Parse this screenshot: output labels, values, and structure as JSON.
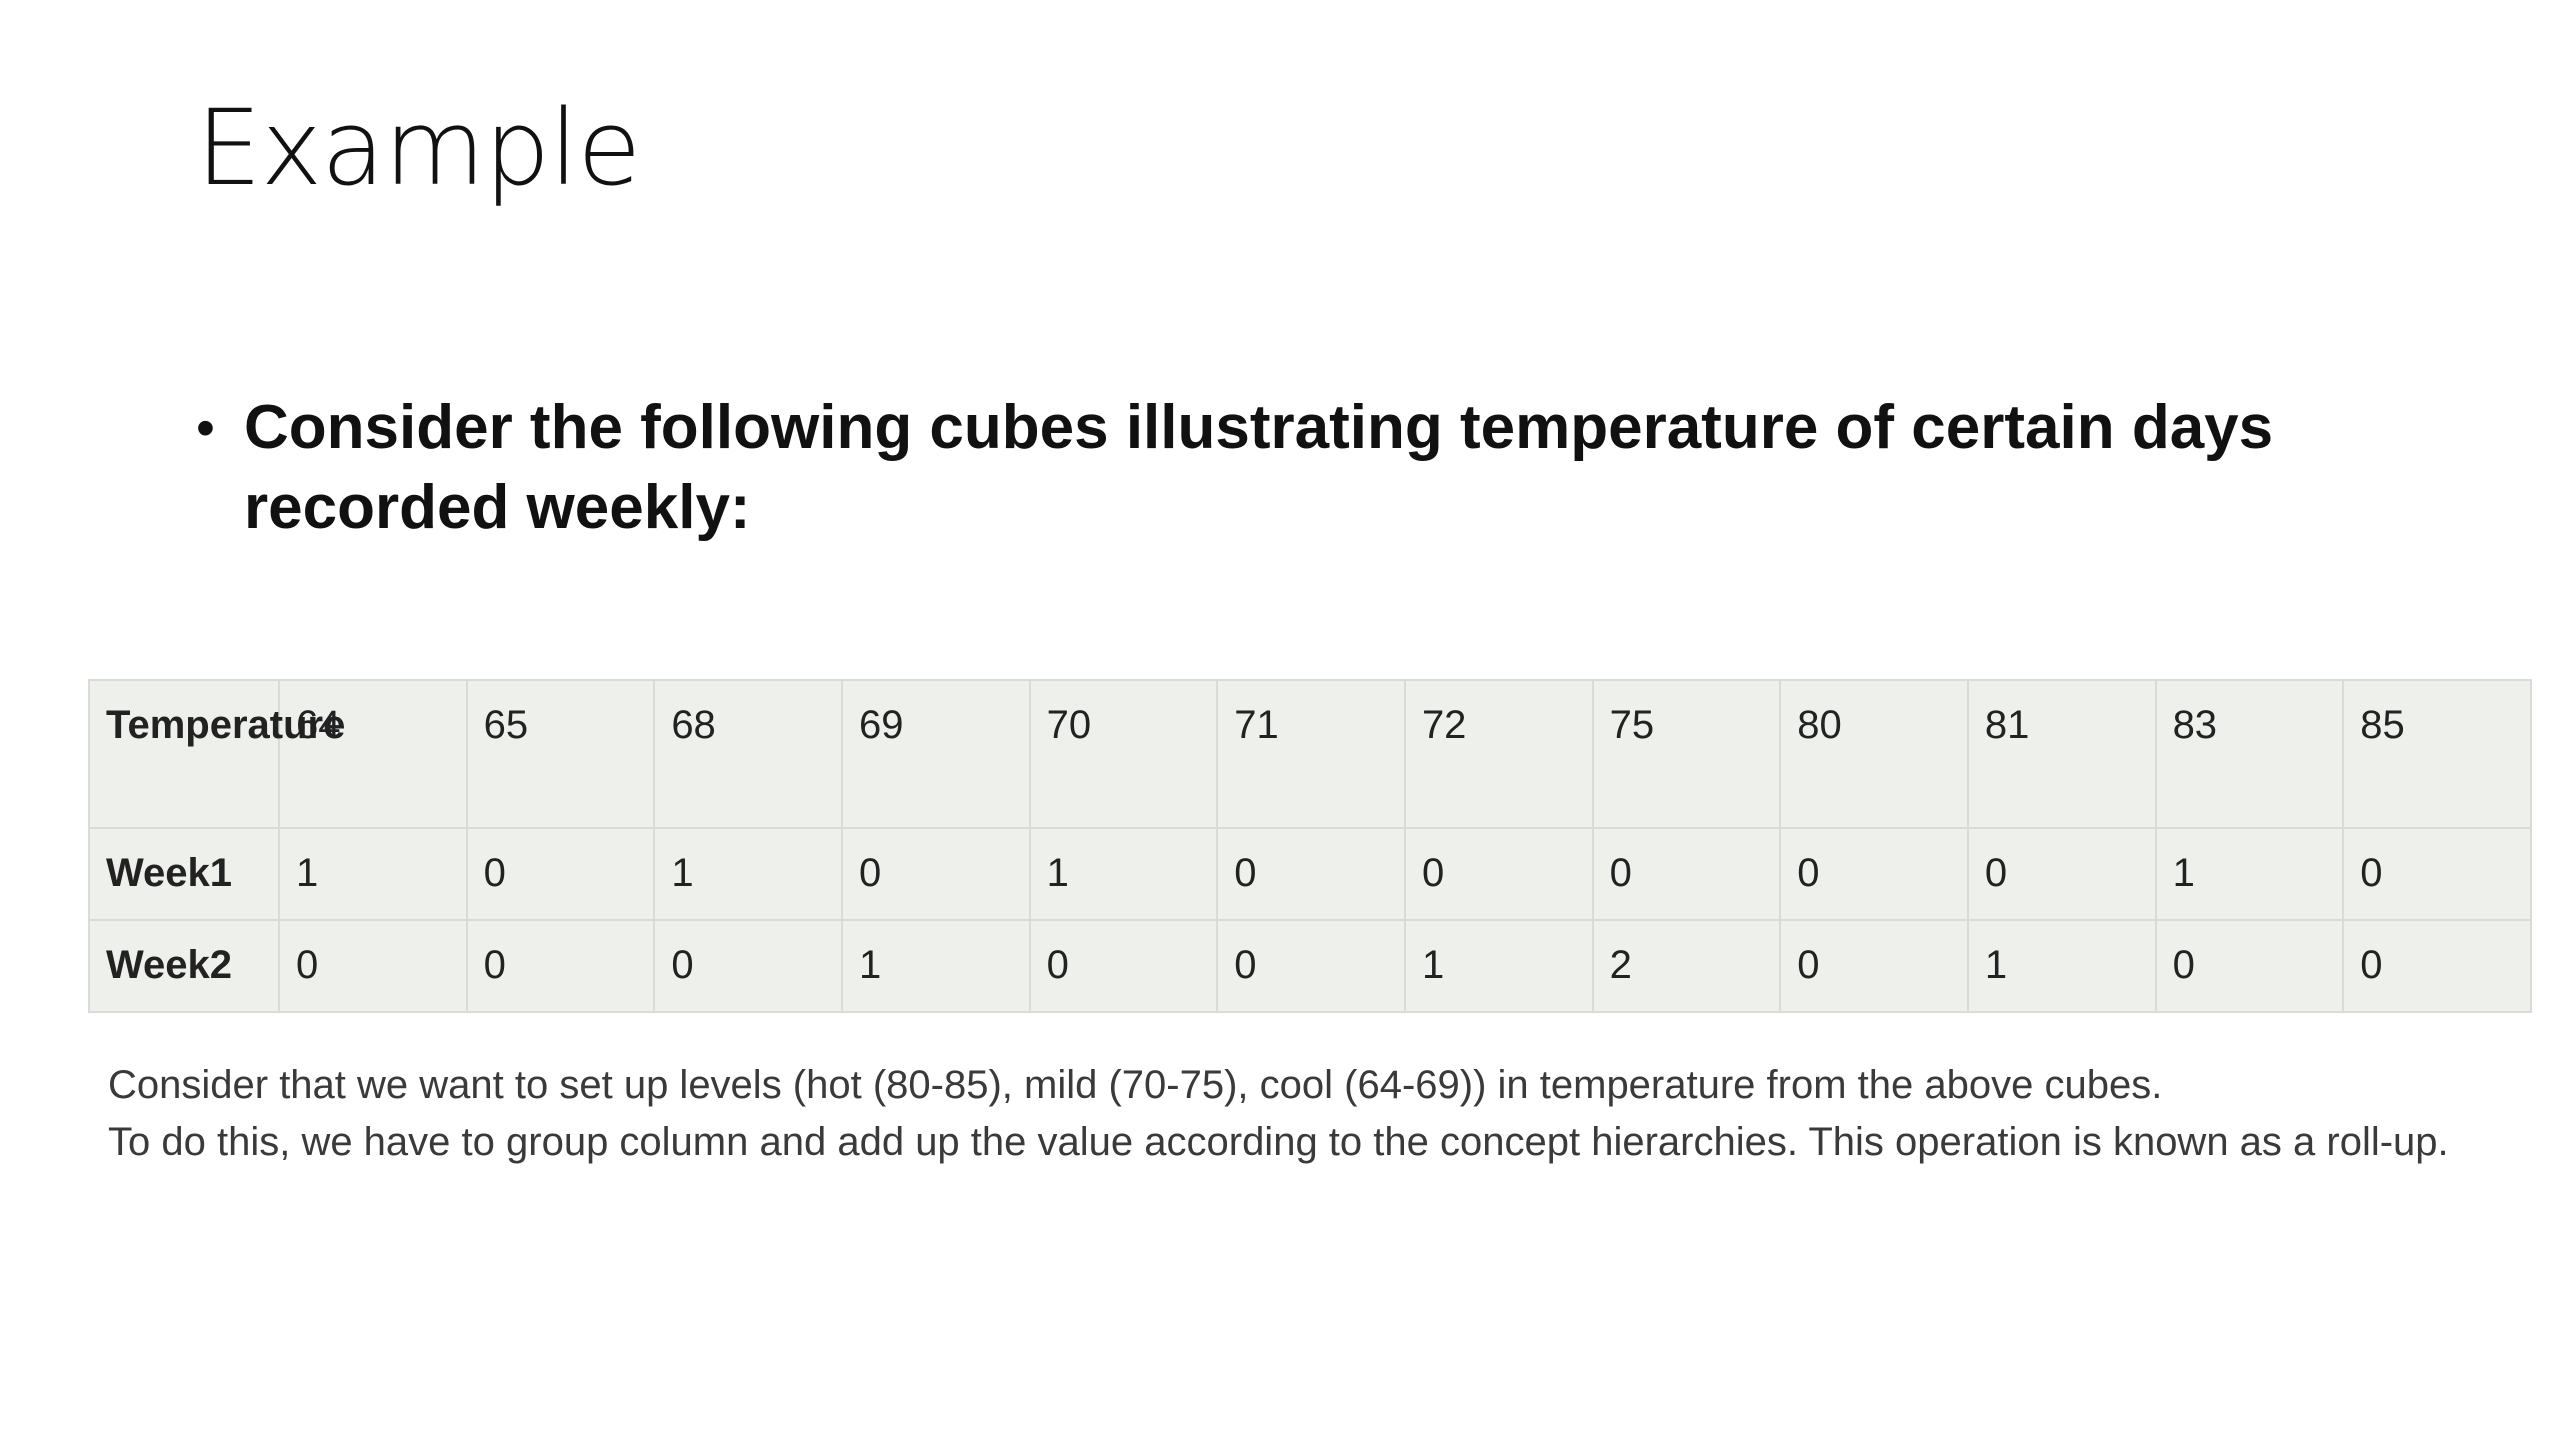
{
  "slide": {
    "title": "Example",
    "bullet": "Consider the following cubes illustrating temperature of certain days recorded weekly:",
    "table": {
      "header_label": "Temperature",
      "temperatures": [
        "64",
        "65",
        "68",
        "69",
        "70",
        "71",
        "72",
        "75",
        "80",
        "81",
        "83",
        "85"
      ],
      "rows": [
        {
          "label": "Week1",
          "values": [
            "1",
            "0",
            "1",
            "0",
            "1",
            "0",
            "0",
            "0",
            "0",
            "0",
            "1",
            "0"
          ]
        },
        {
          "label": "Week2",
          "values": [
            "0",
            "0",
            "0",
            "1",
            "0",
            "0",
            "1",
            "2",
            "0",
            "1",
            "0",
            "0"
          ]
        }
      ]
    },
    "note": [
      "Consider that we want to set up levels (hot (80-85), mild (70-75), cool (64-69)) in temperature from the above cubes.",
      "To do this, we have to group column and add up the value according to the concept hierarchies. This operation is known as a roll-up."
    ]
  }
}
